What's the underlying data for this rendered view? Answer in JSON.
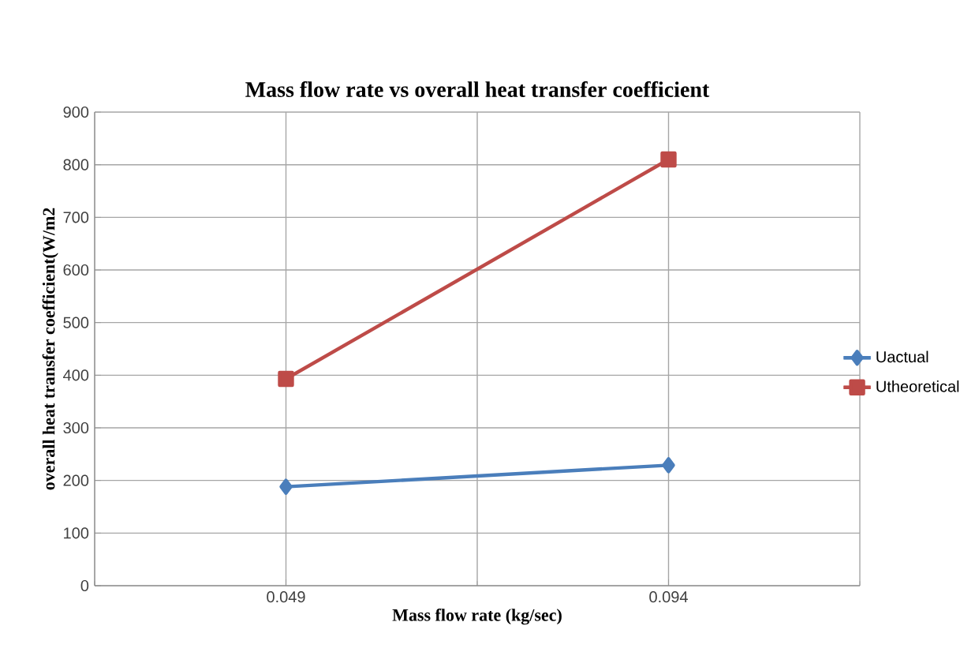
{
  "chart_data": {
    "type": "line",
    "title": "Mass flow rate vs overall heat transfer coefficient",
    "xlabel": "Mass flow  rate (kg/sec)",
    "ylabel": "overall  heat transfer  coefficient(W/m2",
    "categories": [
      "0.049",
      "0.094"
    ],
    "series": [
      {
        "name": "Uactual",
        "color": "#4a7ebb",
        "values": [
          188,
          229
        ],
        "marker": "diamond"
      },
      {
        "name": "Utheoretical",
        "color": "#be4b48",
        "values": [
          393,
          810
        ],
        "marker": "square"
      }
    ],
    "ylim": [
      0,
      900
    ],
    "yticks": [
      0,
      100,
      200,
      300,
      400,
      500,
      600,
      700,
      800,
      900
    ],
    "grid": true,
    "legend": "right"
  }
}
